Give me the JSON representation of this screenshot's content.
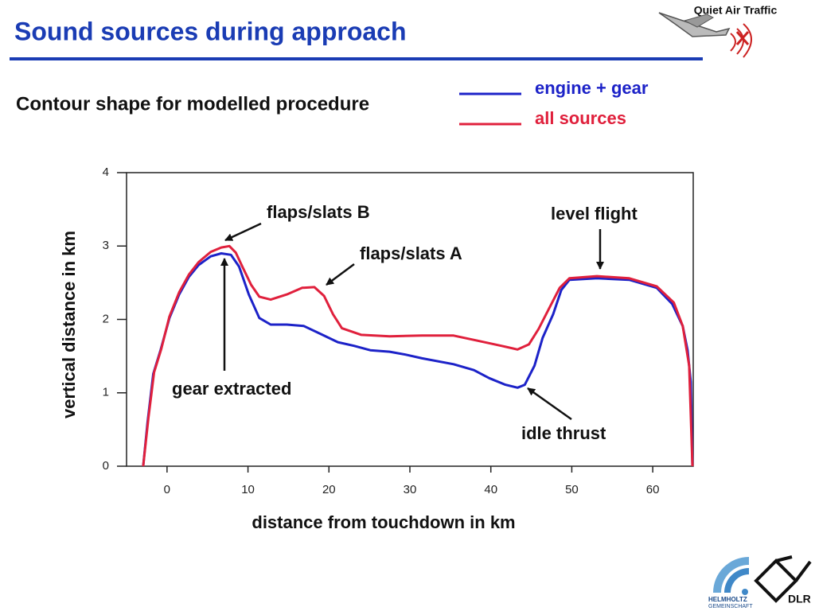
{
  "header": {
    "title": "Sound sources during approach",
    "logo_text": "Quiet Air Traffic"
  },
  "footer": {
    "helmholtz": "HELMHOLTZ",
    "gemeinschaft": "GEMEINSCHAFT",
    "dlr": "DLR"
  },
  "chart_data": {
    "type": "line",
    "title": "Contour shape for modelled procedure",
    "x_label": "distance from touchdown in km",
    "y_label": "vertical distance in km",
    "xlim": [
      -5,
      65
    ],
    "xticks": [
      0,
      10,
      20,
      30,
      40,
      50,
      60
    ],
    "ylim": [
      0,
      4
    ],
    "yticks": [
      0,
      1,
      2,
      3,
      4
    ],
    "annotations": [
      "flaps/slats B",
      "flaps/slats A",
      "level flight",
      "gear extracted",
      "idle thrust"
    ],
    "series": [
      {
        "name": "engine + gear",
        "color": "#1c22c8",
        "x": [
          -2.95,
          -2.4,
          -1.7,
          -0.8,
          0.3,
          1.5,
          2.7,
          3.9,
          5.4,
          6.7,
          7.9,
          8.9,
          10.1,
          11.4,
          12.8,
          14.8,
          16.9,
          19,
          21.1,
          23.1,
          25.1,
          27.5,
          29.5,
          31.5,
          35.4,
          37.9,
          39.8,
          41.8,
          43.3,
          44.2,
          45.4,
          46.4,
          47.7,
          48.7,
          49.7,
          53.1,
          57.1,
          60.5,
          62.4,
          63.7,
          64.3,
          64.7,
          64.9
        ],
        "values": [
          0,
          0.6,
          1.26,
          1.58,
          2.02,
          2.34,
          2.58,
          2.74,
          2.86,
          2.9,
          2.88,
          2.72,
          2.34,
          2.02,
          1.93,
          1.93,
          1.91,
          1.8,
          1.69,
          1.64,
          1.58,
          1.56,
          1.52,
          1.47,
          1.39,
          1.31,
          1.2,
          1.11,
          1.07,
          1.11,
          1.37,
          1.75,
          2.07,
          2.4,
          2.54,
          2.56,
          2.54,
          2.43,
          2.21,
          1.91,
          1.58,
          1.15,
          0
        ]
      },
      {
        "name": "all sources",
        "color": "#e0203c",
        "x": [
          -2.95,
          -2.3,
          -1.6,
          -0.7,
          0.3,
          1.5,
          2.7,
          3.9,
          5.4,
          6.7,
          7.7,
          8.5,
          9.3,
          10.4,
          11.4,
          12.8,
          14.8,
          16.7,
          18.2,
          19.4,
          20.5,
          21.6,
          24,
          27.5,
          31.5,
          35.4,
          38.4,
          41.3,
          43.3,
          44.7,
          45.9,
          47.2,
          48.5,
          49.7,
          53.1,
          57.1,
          60.5,
          62.6,
          63.7,
          64.5,
          64.9
        ],
        "values": [
          0,
          0.66,
          1.28,
          1.6,
          2.04,
          2.37,
          2.61,
          2.78,
          2.92,
          2.98,
          3.0,
          2.91,
          2.72,
          2.47,
          2.31,
          2.27,
          2.34,
          2.43,
          2.44,
          2.32,
          2.07,
          1.88,
          1.79,
          1.77,
          1.78,
          1.78,
          1.71,
          1.64,
          1.59,
          1.66,
          1.87,
          2.15,
          2.43,
          2.56,
          2.59,
          2.56,
          2.45,
          2.23,
          1.91,
          1.37,
          0
        ]
      }
    ]
  }
}
